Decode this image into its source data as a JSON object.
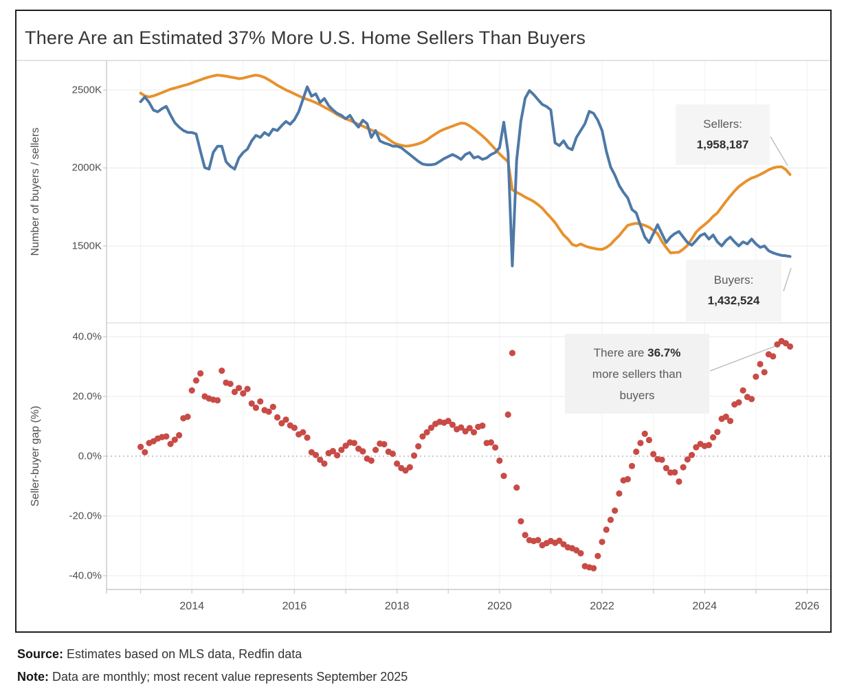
{
  "title": "There Are an Estimated 37% More U.S. Home Sellers Than Buyers",
  "footer": {
    "source_label": "Source:",
    "source_text": "Estimates based on MLS data, Redfin data",
    "note_label": "Note:",
    "note_text": "Data are monthly; most recent value represents September 2025"
  },
  "callouts": {
    "sellers": {
      "label": "Sellers:",
      "value": "1,958,187"
    },
    "buyers": {
      "label": "Buyers:",
      "value": "1,432,524"
    },
    "gap": {
      "prefix": "There are ",
      "value": "36.7%",
      "line2": "more sellers than",
      "line3": "buyers"
    }
  },
  "colors": {
    "sellers_line": "#E8912D",
    "buyers_line": "#4E79A7",
    "gap_dots": "#C84B46",
    "gridline": "#e9e9e9",
    "year_gridline": "#f2f2f2",
    "zero_line": "#a8a8a8",
    "axis_line": "#c9c9c9",
    "leader_line": "#b8b8b8"
  },
  "chart_data": [
    {
      "type": "line",
      "ylabel": "Number of buyers / sellers",
      "x_start_year": 2013.0,
      "x_step_years": 0.0833333,
      "x_last_month": "September 2025",
      "x_tick_labels": [
        "2014",
        "2016",
        "2018",
        "2020",
        "2022",
        "2024",
        "2026"
      ],
      "x_minor_tick_years": [
        2013,
        2014,
        2015,
        2016,
        2017,
        2018,
        2019,
        2020,
        2021,
        2022,
        2023,
        2024,
        2025,
        2026
      ],
      "yticks": [
        {
          "label": "2500K",
          "value": 2500
        },
        {
          "label": "2000K",
          "value": 2000
        },
        {
          "label": "1500K",
          "value": 1500
        }
      ],
      "ylim_thousands": [
        1007,
        2689
      ],
      "legend_position": "annotated-callouts",
      "grid": true,
      "series": [
        {
          "name": "Sellers",
          "final_value_exact": 1958187,
          "units": "thousands",
          "values": [
            2480,
            2462,
            2455,
            2462,
            2472,
            2483,
            2494,
            2505,
            2512,
            2520,
            2528,
            2535,
            2545,
            2555,
            2565,
            2575,
            2583,
            2590,
            2595,
            2592,
            2588,
            2583,
            2578,
            2572,
            2576,
            2583,
            2590,
            2595,
            2590,
            2580,
            2565,
            2548,
            2530,
            2515,
            2500,
            2488,
            2475,
            2462,
            2450,
            2440,
            2430,
            2418,
            2405,
            2390,
            2375,
            2360,
            2342,
            2328,
            2315,
            2305,
            2292,
            2280,
            2268,
            2255,
            2243,
            2232,
            2220,
            2205,
            2185,
            2165,
            2152,
            2145,
            2140,
            2142,
            2148,
            2155,
            2165,
            2180,
            2200,
            2218,
            2235,
            2248,
            2258,
            2268,
            2278,
            2288,
            2285,
            2270,
            2250,
            2228,
            2205,
            2180,
            2150,
            2120,
            2090,
            2064,
            2040,
            1860,
            1844,
            1830,
            1813,
            1800,
            1785,
            1765,
            1742,
            1710,
            1681,
            1650,
            1610,
            1570,
            1544,
            1510,
            1500,
            1513,
            1500,
            1491,
            1485,
            1480,
            1478,
            1490,
            1510,
            1540,
            1566,
            1600,
            1632,
            1640,
            1645,
            1640,
            1632,
            1620,
            1600,
            1579,
            1530,
            1490,
            1456,
            1458,
            1460,
            1480,
            1504,
            1545,
            1588,
            1615,
            1637,
            1660,
            1690,
            1712,
            1750,
            1786,
            1820,
            1852,
            1880,
            1901,
            1920,
            1935,
            1945,
            1958,
            1972,
            1988,
            2000,
            2006,
            2008,
            1990,
            1958
          ]
        },
        {
          "name": "Buyers",
          "final_value_exact": 1432524,
          "units": "thousands",
          "values": [
            2425,
            2455,
            2420,
            2370,
            2360,
            2380,
            2395,
            2340,
            2290,
            2262,
            2240,
            2228,
            2227,
            2218,
            2108,
            2002,
            1993,
            2100,
            2139,
            2139,
            2040,
            2011,
            1993,
            2064,
            2099,
            2121,
            2174,
            2209,
            2196,
            2227,
            2209,
            2249,
            2240,
            2271,
            2298,
            2280,
            2310,
            2360,
            2440,
            2520,
            2460,
            2475,
            2420,
            2445,
            2400,
            2372,
            2350,
            2337,
            2315,
            2337,
            2293,
            2262,
            2306,
            2284,
            2196,
            2240,
            2174,
            2160,
            2152,
            2140,
            2140,
            2130,
            2108,
            2086,
            2064,
            2042,
            2025,
            2020,
            2020,
            2025,
            2042,
            2060,
            2073,
            2086,
            2073,
            2055,
            2086,
            2099,
            2064,
            2073,
            2055,
            2064,
            2086,
            2099,
            2130,
            2293,
            2100,
            1372,
            2050,
            2300,
            2447,
            2496,
            2470,
            2438,
            2407,
            2394,
            2372,
            2161,
            2143,
            2174,
            2130,
            2117,
            2196,
            2240,
            2284,
            2363,
            2350,
            2306,
            2240,
            2108,
            2007,
            1954,
            1888,
            1844,
            1808,
            1734,
            1712,
            1632,
            1557,
            1522,
            1579,
            1636,
            1579,
            1522,
            1557,
            1579,
            1593,
            1557,
            1522,
            1505,
            1535,
            1566,
            1579,
            1544,
            1570,
            1526,
            1500,
            1535,
            1557,
            1526,
            1500,
            1526,
            1513,
            1544,
            1513,
            1491,
            1500,
            1469,
            1456,
            1447,
            1440,
            1437,
            1433
          ]
        }
      ]
    },
    {
      "type": "scatter",
      "ylabel": "Seller-buyer gap (%)",
      "x_start_year": 2013.0,
      "x_step_years": 0.0833333,
      "x_last_month": "September 2025",
      "final_value_percent": 36.7,
      "yticks": [
        {
          "label": "40.0%",
          "value": 40
        },
        {
          "label": "20.0%",
          "value": 20
        },
        {
          "label": "0.0%",
          "value": 0
        },
        {
          "label": "-20.0%",
          "value": -20
        },
        {
          "label": "-40.0%",
          "value": -40
        }
      ],
      "ylim_percent": [
        -44.6,
        44.6
      ],
      "zero_line_style": "dotted",
      "grid": true,
      "values": [
        3.1,
        1.3,
        4.4,
        5.0,
        5.9,
        6.4,
        6.6,
        4.1,
        5.5,
        7.0,
        12.7,
        13.2,
        22.0,
        25.3,
        27.7,
        20.0,
        19.3,
        18.9,
        18.7,
        28.6,
        24.6,
        24.2,
        21.5,
        22.8,
        21.0,
        22.5,
        17.6,
        16.2,
        18.3,
        15.4,
        14.9,
        16.5,
        13.0,
        11.0,
        12.2,
        10.3,
        9.5,
        7.3,
        8.0,
        6.2,
        1.3,
        0.4,
        -1.2,
        -2.5,
        1.0,
        1.7,
        0.3,
        2.1,
        3.5,
        4.6,
        4.4,
        2.5,
        1.6,
        -0.8,
        -1.5,
        2.1,
        4.2,
        4.0,
        1.5,
        0.8,
        -2.5,
        -4.0,
        -4.8,
        -3.7,
        0.2,
        3.3,
        6.6,
        8.0,
        9.5,
        10.8,
        11.5,
        11.2,
        11.8,
        10.5,
        9.0,
        9.6,
        8.3,
        9.4,
        8.0,
        9.8,
        10.2,
        4.4,
        4.6,
        2.9,
        -1.5,
        -6.6,
        13.9,
        34.5,
        -10.5,
        -21.8,
        -26.4,
        -28.1,
        -28.4,
        -28.1,
        -29.8,
        -29.1,
        -28.4,
        -29.0,
        -28.3,
        -29.5,
        -30.5,
        -30.8,
        -31.5,
        -32.5,
        -36.8,
        -37.2,
        -37.5,
        -33.4,
        -28.7,
        -24.6,
        -21.3,
        -18.2,
        -12.5,
        -8.1,
        -7.7,
        -3.3,
        1.5,
        4.4,
        7.5,
        5.4,
        0.7,
        -1.0,
        -1.2,
        -4.0,
        -5.5,
        -5.4,
        -8.5,
        -3.7,
        -1.1,
        0.4,
        3.0,
        4.1,
        3.4,
        3.7,
        6.3,
        8.1,
        12.5,
        13.2,
        11.8,
        17.3,
        18.0,
        22.0,
        19.8,
        19.1,
        26.6,
        30.8,
        28.1,
        34.1,
        33.4,
        37.4,
        38.5,
        37.8,
        36.7
      ]
    }
  ]
}
